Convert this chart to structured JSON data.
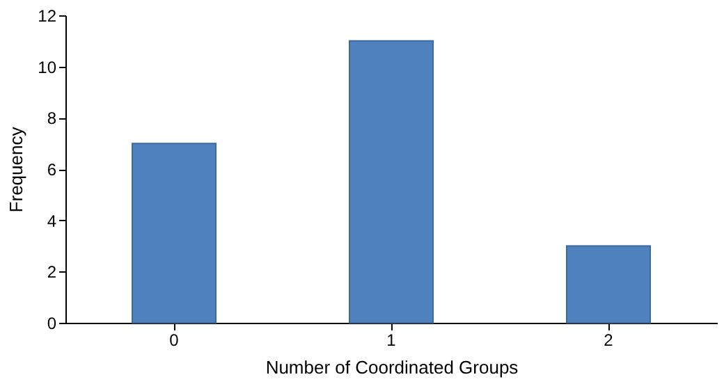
{
  "chart_data": {
    "type": "bar",
    "xlabel": "Number of Coordinated Groups",
    "ylabel": "Frequency",
    "categories": [
      "0",
      "1",
      "2"
    ],
    "values": [
      7,
      11,
      3
    ],
    "color": "#4f81bd",
    "ylim": [
      0,
      12
    ],
    "yticks": [
      0,
      2,
      4,
      6,
      8,
      10,
      12
    ],
    "grid": false
  }
}
